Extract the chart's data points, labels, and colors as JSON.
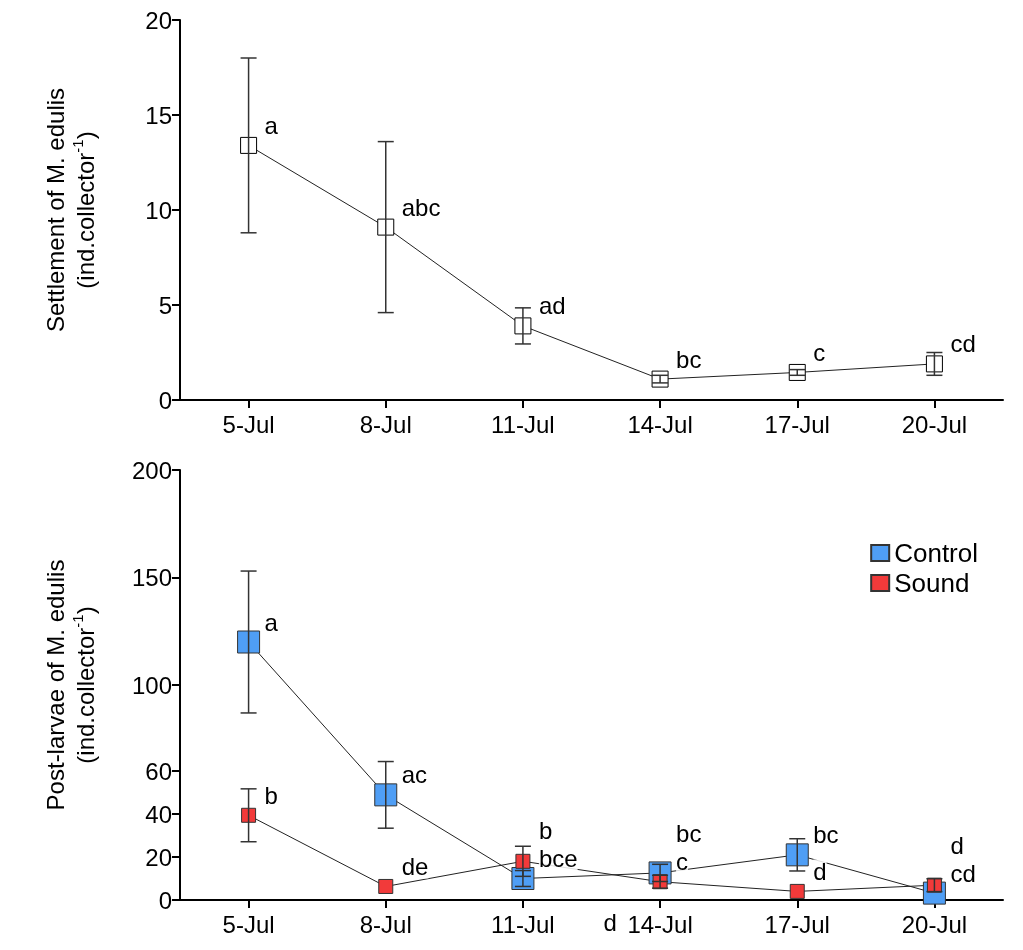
{
  "chart_data": [
    {
      "type": "line",
      "ylabel": "Settlement of M. edulis\n(ind.collector$^{-1}$)",
      "categories": [
        "5-Jul",
        "8-Jul",
        "11-Jul",
        "14-Jul",
        "17-Jul",
        "20-Jul"
      ],
      "series": [
        {
          "color": "#ffffff",
          "values": [
            13.4,
            9.1,
            3.9,
            1.1,
            1.45,
            1.9
          ],
          "errors": [
            4.6,
            4.5,
            0.95,
            0.2,
            0.15,
            0.6
          ]
        }
      ],
      "ylim": [
        0,
        20
      ],
      "yticks": [
        0,
        5,
        10,
        15,
        20
      ],
      "marker": "square",
      "line_style": "solid",
      "grid": false,
      "legend": false,
      "annotations": [
        {
          "text": "a",
          "x": "5-Jul",
          "y": 13.4
        },
        {
          "text": "abc",
          "x": "8-Jul",
          "y": 9.1
        },
        {
          "text": "ad",
          "x": "11-Jul",
          "y": 3.9
        },
        {
          "text": "bc",
          "x": "14-Jul",
          "y": 1.1
        },
        {
          "text": "c",
          "x": "17-Jul",
          "y": 1.45
        },
        {
          "text": "cd",
          "x": "20-Jul",
          "y": 1.9
        }
      ]
    },
    {
      "type": "line",
      "ylabel": "Post-larvae of M. edulis\n(ind.collector$^{-1}$)",
      "categories": [
        "5-Jul",
        "8-Jul",
        "11-Jul",
        "14-Jul",
        "17-Jul",
        "20-Jul"
      ],
      "series": [
        {
          "name": "Control",
          "color": "#4f9ef5",
          "values": [
            120,
            48.9,
            10,
            12.6,
            21,
            3.2
          ],
          "errors": [
            33,
            15.5,
            3.7,
            4,
            7.5,
            null
          ]
        },
        {
          "name": "Sound",
          "color": "#f23a3a",
          "values": [
            39.4,
            6.3,
            18,
            8.5,
            4,
            6.9
          ],
          "errors": [
            12.3,
            null,
            7,
            3,
            null,
            3
          ]
        }
      ],
      "ylim": [
        0,
        200
      ],
      "yticks": [
        0,
        20,
        40,
        60,
        100,
        150,
        200
      ],
      "marker": "square",
      "line_style": "solid",
      "grid": false,
      "legend": "top right",
      "annotations": [
        {
          "text": "a",
          "x": "5-Jul",
          "y": 120
        },
        {
          "text": "ac",
          "x": "8-Jul",
          "y": 48.9
        },
        {
          "text": "b",
          "x": "5-Jul",
          "y": 39.4
        },
        {
          "text": "de",
          "x": "8-Jul",
          "y": 6.3
        },
        {
          "text": "b",
          "x": "11-Jul",
          "y": 18
        },
        {
          "text": "bce",
          "x": "11-Jul",
          "y": 10
        },
        {
          "text": "bc",
          "x": "14-Jul",
          "y": 12.6
        },
        {
          "text": "c",
          "x": "14-Jul",
          "y": 8.5
        },
        {
          "text": "bc",
          "x": "17-Jul",
          "y": 21
        },
        {
          "text": "d",
          "x": "17-Jul",
          "y": 4
        },
        {
          "text": "cd",
          "x": "20-Jul",
          "y": 3.2
        },
        {
          "text": "d",
          "x": "20-Jul",
          "y": 6.9
        },
        "d"
      ]
    }
  ]
}
